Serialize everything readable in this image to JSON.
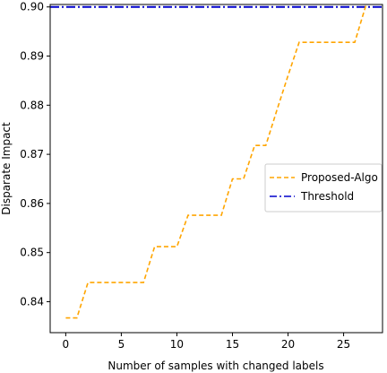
{
  "chart_data": {
    "type": "line",
    "title": "",
    "xlabel": "Number of samples with changed labels",
    "ylabel": "Disparate Impact",
    "xlim": [
      -1.4,
      28.5
    ],
    "ylim": [
      0.8337,
      0.9005
    ],
    "xticks": [
      0,
      5,
      10,
      15,
      20,
      25
    ],
    "xtick_labels": [
      "0",
      "5",
      "10",
      "15",
      "20",
      "25"
    ],
    "yticks": [
      0.84,
      0.85,
      0.86,
      0.87,
      0.88,
      0.89,
      0.9
    ],
    "ytick_labels": [
      "0.84",
      "0.85",
      "0.86",
      "0.87",
      "0.88",
      "0.89",
      "0.90"
    ],
    "grid": false,
    "legend": "center-right",
    "series": [
      {
        "name": "Proposed-Algo",
        "color": "#FFA500",
        "linestyle": "dashed",
        "x": [
          0,
          1,
          2,
          3,
          4,
          5,
          6,
          7,
          8,
          9,
          10,
          11,
          12,
          13,
          14,
          15,
          16,
          17,
          18,
          19,
          20,
          21,
          22,
          23,
          24,
          25,
          26,
          27
        ],
        "y": [
          0.8367,
          0.8367,
          0.8439,
          0.8439,
          0.8439,
          0.8439,
          0.8439,
          0.8439,
          0.8512,
          0.8512,
          0.8512,
          0.8576,
          0.8576,
          0.8576,
          0.8576,
          0.865,
          0.865,
          0.8718,
          0.8718,
          0.879,
          0.886,
          0.8928,
          0.8928,
          0.8928,
          0.8928,
          0.8928,
          0.8928,
          0.9003
        ]
      },
      {
        "name": "Threshold",
        "color": "#0000CC",
        "linestyle": "dashdot",
        "constant": 0.9
      }
    ]
  }
}
